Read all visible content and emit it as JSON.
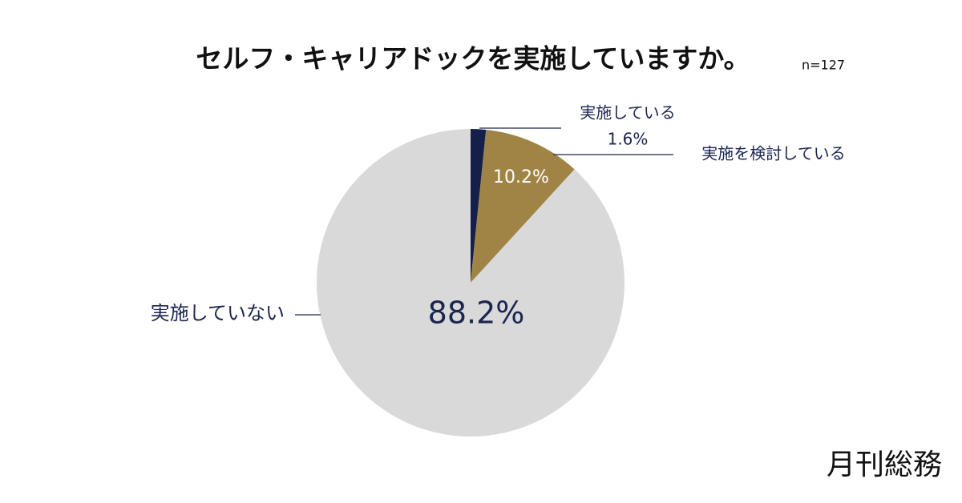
{
  "chart_data": {
    "type": "pie",
    "title": "セルフ・キャリアドックを実施していますか。",
    "subtitle": "n=127",
    "categories": [
      "実施している",
      "実施を検討している",
      "実施していない"
    ],
    "values": [
      1.6,
      10.2,
      88.2
    ],
    "value_labels": [
      "1.6%",
      "10.2%",
      "88.2%"
    ],
    "colors": [
      "#14204a",
      "#a08446",
      "#d9d9d9"
    ]
  },
  "brand": "月刊総務"
}
